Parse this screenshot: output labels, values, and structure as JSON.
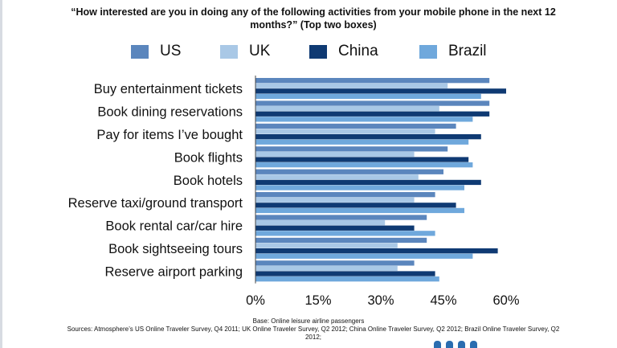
{
  "chart_data": {
    "type": "bar",
    "orientation": "horizontal",
    "title": "“How interested are you in doing any of the following activities from your mobile phone in the next 12 months?” (Top two boxes)",
    "categories": [
      "Buy entertainment tickets",
      "Book dining reservations",
      "Pay for items I’ve bought",
      "Book flights",
      "Book hotels",
      "Reserve taxi/ground transport",
      "Book rental car/car hire",
      "Book sightseeing tours",
      "Reserve airport parking"
    ],
    "series": [
      {
        "name": "US",
        "color": "#5b86bd",
        "values": [
          56,
          56,
          48,
          46,
          45,
          43,
          41,
          41,
          38
        ]
      },
      {
        "name": "UK",
        "color": "#a9c8e6",
        "values": [
          46,
          44,
          43,
          38,
          39,
          38,
          31,
          34,
          34
        ]
      },
      {
        "name": "China",
        "color": "#0f3a73",
        "values": [
          60,
          56,
          54,
          51,
          54,
          48,
          38,
          58,
          43
        ]
      },
      {
        "name": "Brazil",
        "color": "#6fa8dc",
        "values": [
          54,
          52,
          51,
          52,
          50,
          50,
          43,
          52,
          44
        ]
      }
    ],
    "xlim": [
      0,
      60
    ],
    "xticks": [
      "0%",
      "15%",
      "30%",
      "45%",
      "60%"
    ],
    "tick_values": [
      0,
      15,
      30,
      45,
      60
    ],
    "grid": false,
    "legend": "top"
  },
  "footer": {
    "base": "Base: Online leisure airline passengers",
    "sources": "Sources: Atmosphere’s US Online Traveler Survey, Q4 2011; UK Online Traveler Survey, Q2 2012; China Online Traveler Survey, Q2 2012; Brazil Online Traveler Survey, Q2 2012;"
  }
}
